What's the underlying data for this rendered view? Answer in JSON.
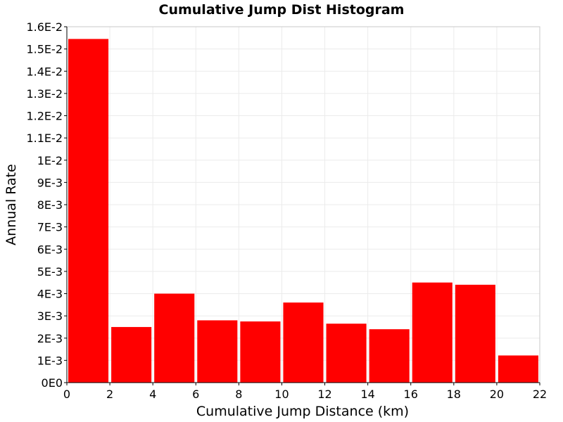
{
  "chart_data": {
    "type": "bar",
    "title": "Cumulative Jump Dist Histogram",
    "xlabel": "Cumulative Jump Distance (km)",
    "ylabel": "Annual Rate",
    "xlim": [
      0,
      22
    ],
    "ylim": [
      0,
      0.016
    ],
    "grid": true,
    "bar_color": "#ff0000",
    "bins": [
      {
        "x0": 0,
        "x1": 2,
        "value": 0.01545
      },
      {
        "x0": 2,
        "x1": 4,
        "value": 0.0025
      },
      {
        "x0": 4,
        "x1": 6,
        "value": 0.004
      },
      {
        "x0": 6,
        "x1": 8,
        "value": 0.0028
      },
      {
        "x0": 8,
        "x1": 10,
        "value": 0.00275
      },
      {
        "x0": 10,
        "x1": 12,
        "value": 0.0036
      },
      {
        "x0": 12,
        "x1": 14,
        "value": 0.00265
      },
      {
        "x0": 14,
        "x1": 16,
        "value": 0.0024
      },
      {
        "x0": 16,
        "x1": 18,
        "value": 0.0045
      },
      {
        "x0": 18,
        "x1": 20,
        "value": 0.0044
      },
      {
        "x0": 20,
        "x1": 22,
        "value": 0.00122
      }
    ],
    "x_ticks": [
      {
        "value": 0,
        "label": "0"
      },
      {
        "value": 2,
        "label": "2"
      },
      {
        "value": 4,
        "label": "4"
      },
      {
        "value": 6,
        "label": "6"
      },
      {
        "value": 8,
        "label": "8"
      },
      {
        "value": 10,
        "label": "10"
      },
      {
        "value": 12,
        "label": "12"
      },
      {
        "value": 14,
        "label": "14"
      },
      {
        "value": 16,
        "label": "16"
      },
      {
        "value": 18,
        "label": "18"
      },
      {
        "value": 20,
        "label": "20"
      },
      {
        "value": 22,
        "label": "22"
      }
    ],
    "y_ticks": [
      {
        "value": 0,
        "label": "0E0"
      },
      {
        "value": 0.001,
        "label": "1E-3"
      },
      {
        "value": 0.002,
        "label": "2E-3"
      },
      {
        "value": 0.003,
        "label": "3E-3"
      },
      {
        "value": 0.004,
        "label": "4E-3"
      },
      {
        "value": 0.005,
        "label": "5E-3"
      },
      {
        "value": 0.006,
        "label": "6E-3"
      },
      {
        "value": 0.007,
        "label": "7E-3"
      },
      {
        "value": 0.008,
        "label": "8E-3"
      },
      {
        "value": 0.009,
        "label": "9E-3"
      },
      {
        "value": 0.01,
        "label": "1E-2"
      },
      {
        "value": 0.011,
        "label": "1.1E-2"
      },
      {
        "value": 0.012,
        "label": "1.2E-2"
      },
      {
        "value": 0.013,
        "label": "1.3E-2"
      },
      {
        "value": 0.014,
        "label": "1.4E-2"
      },
      {
        "value": 0.015,
        "label": "1.5E-2"
      },
      {
        "value": 0.016,
        "label": "1.6E-2"
      }
    ]
  }
}
